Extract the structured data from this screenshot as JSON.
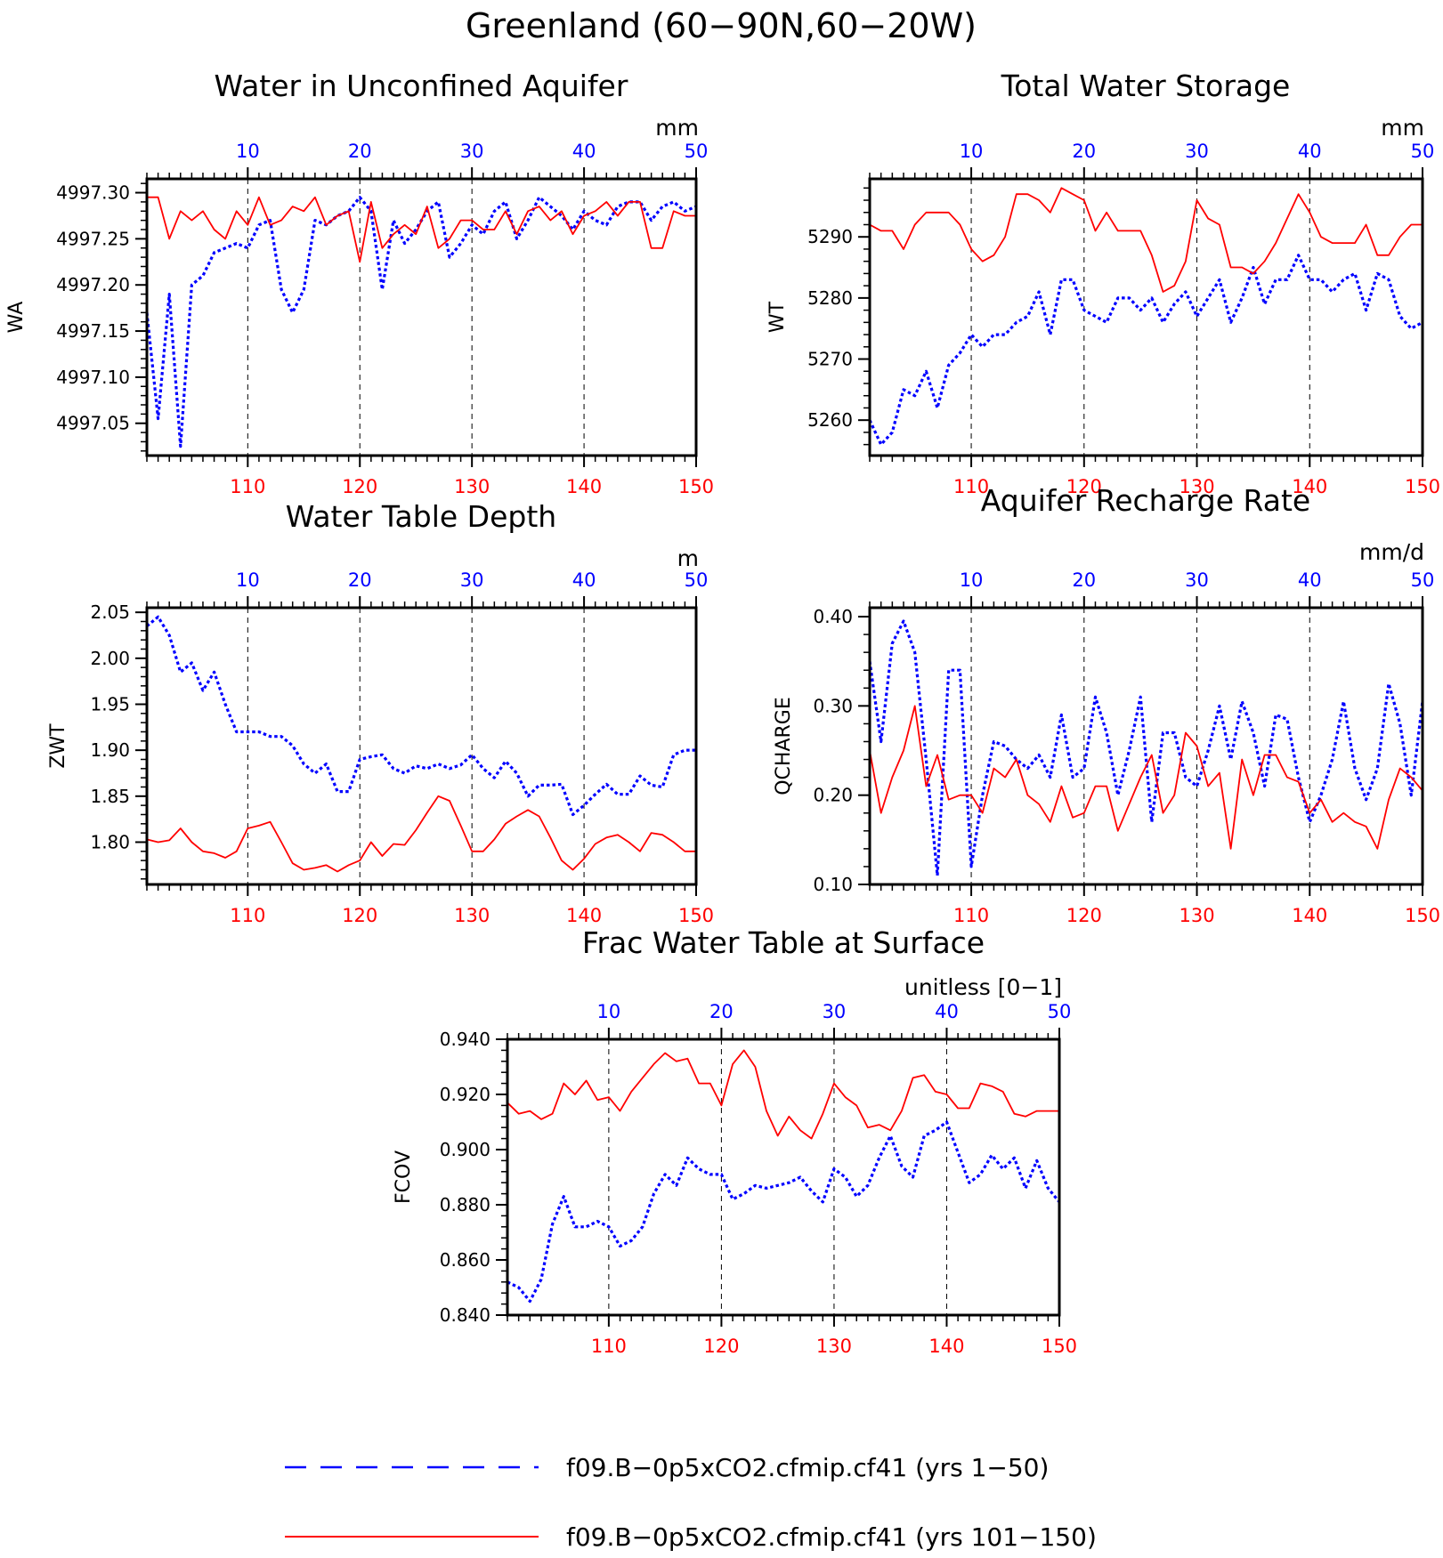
{
  "title": "Greenland (60−90N,60−20W)",
  "colors": {
    "series_a": "#0000ff",
    "series_b": "#ff0000",
    "axis": "#000000"
  },
  "legend": [
    {
      "label": "f09.B−0p5xCO2.cfmip.cf41 (yrs 1−50)",
      "color": "#0000ff",
      "style": "dashed"
    },
    {
      "label": "f09.B−0p5xCO2.cfmip.cf41 (yrs 101−150)",
      "color": "#ff0000",
      "style": "solid"
    }
  ],
  "chart_data": [
    {
      "type": "line",
      "title": "Water in Unconfined Aquifer",
      "units": "mm",
      "ylabel": "WA",
      "xlim_bottom": [
        101,
        150
      ],
      "xlim_top": [
        1,
        50
      ],
      "xticks_bottom": [
        "110",
        "120",
        "130",
        "140",
        "150"
      ],
      "xticks_top": [
        "10",
        "20",
        "30",
        "40",
        "50"
      ],
      "ylim": [
        4997.015,
        4997.315
      ],
      "yticks": [
        4997.05,
        4997.1,
        4997.15,
        4997.2,
        4997.25,
        4997.3
      ],
      "ytick_labels": [
        "4997.05",
        "4997.10",
        "4997.15",
        "4997.20",
        "4997.25",
        "4997.30"
      ],
      "ytick_minor": 0.01,
      "series": [
        {
          "x_axis": "top",
          "color": "#0000ff",
          "style": "dashed",
          "values": [
            4997.17,
            4997.055,
            4997.19,
            4997.025,
            4997.2,
            4997.21,
            4997.235,
            4997.24,
            4997.245,
            4997.24,
            4997.265,
            4997.27,
            4997.195,
            4997.17,
            4997.195,
            4997.27,
            4997.265,
            4997.275,
            4997.28,
            4997.295,
            4997.28,
            4997.195,
            4997.27,
            4997.245,
            4997.26,
            4997.28,
            4997.29,
            4997.23,
            4997.245,
            4997.265,
            4997.255,
            4997.28,
            4997.29,
            4997.25,
            4997.27,
            4997.295,
            4997.285,
            4997.275,
            4997.26,
            4997.28,
            4997.27,
            4997.265,
            4997.285,
            4997.29,
            4997.29,
            4997.27,
            4997.285,
            4997.29,
            4997.28,
            4997.285
          ]
        },
        {
          "x_axis": "bottom",
          "color": "#ff0000",
          "style": "solid",
          "values": [
            4997.295,
            4997.295,
            4997.25,
            4997.28,
            4997.27,
            4997.28,
            4997.26,
            4997.25,
            4997.28,
            4997.265,
            4997.295,
            4997.265,
            4997.27,
            4997.285,
            4997.28,
            4997.295,
            4997.265,
            4997.275,
            4997.28,
            4997.225,
            4997.29,
            4997.24,
            4997.255,
            4997.265,
            4997.255,
            4997.285,
            4997.24,
            4997.25,
            4997.27,
            4997.27,
            4997.26,
            4997.26,
            4997.28,
            4997.255,
            4997.28,
            4997.285,
            4997.27,
            4997.28,
            4997.255,
            4997.275,
            4997.28,
            4997.29,
            4997.275,
            4997.29,
            4997.29,
            4997.24,
            4997.24,
            4997.28,
            4997.275,
            4997.275
          ]
        }
      ]
    },
    {
      "type": "line",
      "title": "Total Water Storage",
      "units": "mm",
      "ylabel": "WT",
      "xlim_bottom": [
        101,
        150
      ],
      "xlim_top": [
        1,
        50
      ],
      "xticks_bottom": [
        "110",
        "120",
        "130",
        "140",
        "150"
      ],
      "xticks_top": [
        "10",
        "20",
        "30",
        "40",
        "50"
      ],
      "ylim": [
        5254.2,
        5299.5
      ],
      "yticks": [
        5260,
        5270,
        5280,
        5290
      ],
      "ytick_labels": [
        "5260",
        "5270",
        "5280",
        "5290"
      ],
      "ytick_minor": 2,
      "series": [
        {
          "x_axis": "top",
          "color": "#0000ff",
          "style": "dashed",
          "values": [
            5260,
            5256,
            5258,
            5265,
            5264,
            5268,
            5262,
            5269,
            5271,
            5274,
            5272,
            5274,
            5274,
            5276,
            5277,
            5281,
            5274,
            5283,
            5283,
            5278,
            5277,
            5276,
            5280,
            5280,
            5278,
            5280,
            5276,
            5279,
            5281,
            5277,
            5280,
            5283,
            5276,
            5280,
            5285,
            5279,
            5283,
            5283,
            5287,
            5283,
            5283,
            5281,
            5283,
            5284,
            5278,
            5284,
            5283,
            5277,
            5275,
            5276
          ]
        },
        {
          "x_axis": "bottom",
          "color": "#ff0000",
          "style": "solid",
          "values": [
            5292,
            5291,
            5291,
            5288,
            5292,
            5294,
            5294,
            5294,
            5292,
            5288,
            5286,
            5287,
            5290,
            5297,
            5297,
            5296,
            5294,
            5298,
            5297,
            5296,
            5291,
            5294,
            5291,
            5291,
            5291,
            5287,
            5281,
            5282,
            5286,
            5296,
            5293,
            5292,
            5285,
            5285,
            5284,
            5286,
            5289,
            5293,
            5297,
            5294,
            5290,
            5289,
            5289,
            5289,
            5292,
            5287,
            5287,
            5290,
            5292,
            5292
          ]
        }
      ]
    },
    {
      "type": "line",
      "title": "Water Table Depth",
      "units": "m",
      "ylabel": "ZWT",
      "xlim_bottom": [
        101,
        150
      ],
      "xlim_top": [
        1,
        50
      ],
      "xticks_bottom": [
        "110",
        "120",
        "130",
        "140",
        "150"
      ],
      "xticks_top": [
        "10",
        "20",
        "30",
        "40",
        "50"
      ],
      "ylim": [
        1.754,
        2.055
      ],
      "yticks": [
        1.8,
        1.85,
        1.9,
        1.95,
        2.0,
        2.05
      ],
      "ytick_labels": [
        "1.80",
        "1.85",
        "1.90",
        "1.95",
        "2.00",
        "2.05"
      ],
      "ytick_minor": 0.01,
      "series": [
        {
          "x_axis": "top",
          "color": "#0000ff",
          "style": "dashed",
          "values": [
            2.035,
            2.045,
            2.025,
            1.985,
            1.995,
            1.965,
            1.985,
            1.95,
            1.92,
            1.92,
            1.92,
            1.915,
            1.915,
            1.905,
            1.885,
            1.875,
            1.885,
            1.855,
            1.855,
            1.89,
            1.893,
            1.895,
            1.88,
            1.875,
            1.883,
            1.88,
            1.885,
            1.88,
            1.884,
            1.895,
            1.88,
            1.87,
            1.888,
            1.875,
            1.85,
            1.862,
            1.862,
            1.863,
            1.83,
            1.84,
            1.852,
            1.863,
            1.852,
            1.852,
            1.872,
            1.862,
            1.86,
            1.895,
            1.9,
            1.9
          ]
        },
        {
          "x_axis": "bottom",
          "color": "#ff0000",
          "style": "solid",
          "values": [
            1.803,
            1.8,
            1.802,
            1.815,
            1.8,
            1.79,
            1.788,
            1.783,
            1.79,
            1.815,
            1.818,
            1.822,
            1.8,
            1.777,
            1.77,
            1.772,
            1.775,
            1.768,
            1.775,
            1.78,
            1.8,
            1.785,
            1.798,
            1.797,
            1.813,
            1.832,
            1.85,
            1.845,
            1.818,
            1.79,
            1.79,
            1.803,
            1.82,
            1.828,
            1.835,
            1.828,
            1.805,
            1.78,
            1.77,
            1.782,
            1.798,
            1.805,
            1.808,
            1.8,
            1.79,
            1.81,
            1.808,
            1.8,
            1.79,
            1.79
          ]
        }
      ]
    },
    {
      "type": "line",
      "title": "Aquifer Recharge Rate",
      "units": "mm/d",
      "ylabel": "QCHARGE",
      "xlim_bottom": [
        101,
        150
      ],
      "xlim_top": [
        1,
        50
      ],
      "xticks_bottom": [
        "110",
        "120",
        "130",
        "140",
        "150"
      ],
      "xticks_top": [
        "10",
        "20",
        "30",
        "40",
        "50"
      ],
      "ylim": [
        0.1,
        0.41
      ],
      "yticks": [
        0.1,
        0.2,
        0.3,
        0.4
      ],
      "ytick_labels": [
        "0.10",
        "0.20",
        "0.30",
        "0.40"
      ],
      "ytick_minor": 0.02,
      "series": [
        {
          "x_axis": "top",
          "color": "#0000ff",
          "style": "dashed",
          "values": [
            0.35,
            0.26,
            0.37,
            0.395,
            0.36,
            0.24,
            0.11,
            0.34,
            0.34,
            0.12,
            0.2,
            0.26,
            0.255,
            0.24,
            0.23,
            0.245,
            0.22,
            0.29,
            0.22,
            0.23,
            0.31,
            0.27,
            0.2,
            0.25,
            0.31,
            0.17,
            0.27,
            0.27,
            0.22,
            0.21,
            0.25,
            0.3,
            0.24,
            0.305,
            0.27,
            0.21,
            0.29,
            0.285,
            0.22,
            0.17,
            0.2,
            0.24,
            0.305,
            0.23,
            0.195,
            0.23,
            0.325,
            0.28,
            0.2,
            0.305
          ]
        },
        {
          "x_axis": "bottom",
          "color": "#ff0000",
          "style": "solid",
          "values": [
            0.25,
            0.18,
            0.22,
            0.25,
            0.3,
            0.21,
            0.245,
            0.195,
            0.2,
            0.2,
            0.18,
            0.23,
            0.22,
            0.24,
            0.2,
            0.19,
            0.17,
            0.21,
            0.175,
            0.18,
            0.21,
            0.21,
            0.16,
            0.19,
            0.22,
            0.245,
            0.18,
            0.2,
            0.27,
            0.255,
            0.21,
            0.225,
            0.14,
            0.24,
            0.2,
            0.245,
            0.245,
            0.22,
            0.215,
            0.18,
            0.195,
            0.17,
            0.18,
            0.17,
            0.165,
            0.14,
            0.195,
            0.23,
            0.22,
            0.205
          ]
        }
      ]
    },
    {
      "type": "line",
      "title": "Frac Water Table at Surface",
      "units": "unitless [0−1]",
      "ylabel": "FCOV",
      "xlim_bottom": [
        101,
        150
      ],
      "xlim_top": [
        1,
        50
      ],
      "xticks_bottom": [
        "110",
        "120",
        "130",
        "140",
        "150"
      ],
      "xticks_top": [
        "10",
        "20",
        "30",
        "40",
        "50"
      ],
      "ylim": [
        0.84,
        0.94
      ],
      "yticks": [
        0.84,
        0.86,
        0.88,
        0.9,
        0.92,
        0.94
      ],
      "ytick_labels": [
        "0.840",
        "0.860",
        "0.880",
        "0.900",
        "0.920",
        "0.940"
      ],
      "ytick_minor": 0.004,
      "series": [
        {
          "x_axis": "top",
          "color": "#0000ff",
          "style": "dashed",
          "values": [
            0.852,
            0.85,
            0.845,
            0.853,
            0.873,
            0.883,
            0.872,
            0.872,
            0.874,
            0.872,
            0.865,
            0.867,
            0.872,
            0.884,
            0.891,
            0.887,
            0.897,
            0.893,
            0.891,
            0.891,
            0.882,
            0.884,
            0.887,
            0.886,
            0.887,
            0.888,
            0.89,
            0.885,
            0.881,
            0.893,
            0.89,
            0.883,
            0.887,
            0.897,
            0.905,
            0.894,
            0.89,
            0.905,
            0.907,
            0.91,
            0.899,
            0.888,
            0.891,
            0.898,
            0.893,
            0.897,
            0.886,
            0.896,
            0.886,
            0.881
          ]
        },
        {
          "x_axis": "bottom",
          "color": "#ff0000",
          "style": "solid",
          "values": [
            0.917,
            0.913,
            0.914,
            0.911,
            0.913,
            0.924,
            0.92,
            0.925,
            0.918,
            0.919,
            0.914,
            0.921,
            0.926,
            0.931,
            0.935,
            0.932,
            0.933,
            0.924,
            0.924,
            0.916,
            0.931,
            0.936,
            0.93,
            0.914,
            0.905,
            0.912,
            0.907,
            0.904,
            0.913,
            0.924,
            0.919,
            0.916,
            0.908,
            0.909,
            0.907,
            0.914,
            0.926,
            0.927,
            0.921,
            0.92,
            0.915,
            0.915,
            0.924,
            0.923,
            0.921,
            0.913,
            0.912,
            0.914,
            0.914,
            0.914
          ]
        }
      ]
    }
  ]
}
